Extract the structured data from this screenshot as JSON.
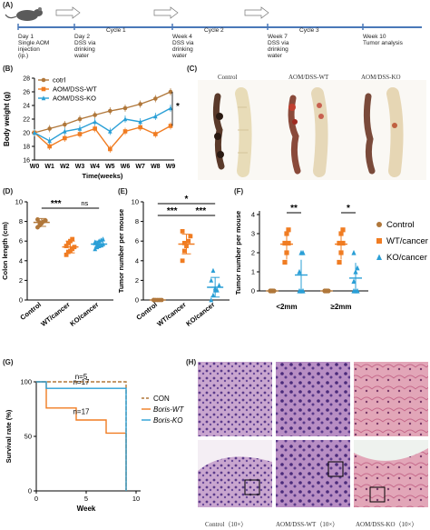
{
  "panels": {
    "A": "(A)",
    "B": "(B)",
    "C": "(C)",
    "D": "(D)",
    "E": "(E)",
    "F": "(F)",
    "G": "(G)",
    "H": "(H)"
  },
  "timeline": {
    "events": [
      {
        "line1": "Day 1",
        "line2": "Single AOM",
        "line3": "injection",
        "line4": "(ip.)"
      },
      {
        "line1": "Day 2",
        "line2": "DSS via",
        "line3": "drinking",
        "line4": "water"
      },
      {
        "line1": "Week 4",
        "line2": "DSS via",
        "line3": "drinking",
        "line4": "water"
      },
      {
        "line1": "Week 7",
        "line2": "DSS via",
        "line3": "drinking",
        "line4": "water"
      },
      {
        "line1": "Week 10",
        "line2": "Tumor analysis",
        "line3": "",
        "line4": ""
      }
    ],
    "cycles": [
      "Cycle 1",
      "Cycle 2",
      "Cycle 3"
    ]
  },
  "photos_c": {
    "labels": [
      "Control",
      "AOM/DSS-WT",
      "AOM/DSS-KO"
    ]
  },
  "photos_h": {
    "labels": [
      "Control（10×）",
      "AOM/DSS-WT（10×）",
      "AOM/DSS-KO（10×）"
    ]
  },
  "chart_data": [
    {
      "id": "B",
      "type": "line",
      "ylabel": "Body weight (g)",
      "xlabel": "Time(weeks)",
      "categories": [
        "W0",
        "W1",
        "W2",
        "W3",
        "W4",
        "W5",
        "W6",
        "W7",
        "W8",
        "W9"
      ],
      "ylim": [
        16,
        28
      ],
      "yticks": [
        16,
        18,
        20,
        22,
        24,
        26,
        28
      ],
      "series": [
        {
          "name": "cotrl",
          "color": "#b0773a",
          "values": [
            20,
            20.6,
            21.2,
            22.0,
            22.6,
            23.2,
            23.6,
            24.2,
            25.0,
            26.0
          ]
        },
        {
          "name": "AOM/DSS-WT",
          "color": "#f07c22",
          "values": [
            20,
            18.0,
            19.2,
            19.8,
            20.6,
            17.6,
            20.2,
            20.8,
            19.8,
            21.0
          ]
        },
        {
          "name": "AOM/DSS-KO",
          "color": "#2a9fd6",
          "values": [
            20,
            18.8,
            20.2,
            20.6,
            21.6,
            20.2,
            22.0,
            21.6,
            22.4,
            23.6
          ]
        }
      ],
      "annotation": "*"
    },
    {
      "id": "D",
      "type": "scatter",
      "ylabel": "Colon length (cm)",
      "categories": [
        "Control",
        "WT/cancer",
        "KO/cancer"
      ],
      "ylim": [
        0,
        10
      ],
      "yticks": [
        0,
        2,
        4,
        6,
        8,
        10
      ],
      "colors": [
        "#b0773a",
        "#f07c22",
        "#2a9fd6"
      ],
      "series": [
        {
          "values": [
            7.4,
            7.6,
            7.8,
            8.0,
            8.1,
            8.2,
            7.9
          ],
          "mean": 7.9,
          "sd": 0.4
        },
        {
          "values": [
            4.6,
            4.9,
            5.0,
            5.2,
            5.4,
            5.5,
            5.8,
            6.0,
            6.2
          ],
          "mean": 5.4,
          "sd": 0.6
        },
        {
          "values": [
            5.2,
            5.4,
            5.5,
            5.6,
            5.7,
            5.8,
            5.8,
            6.0,
            6.1,
            6.2,
            5.9,
            5.6
          ],
          "mean": 5.7,
          "sd": 0.3
        }
      ],
      "significance": [
        "***",
        "ns"
      ]
    },
    {
      "id": "E",
      "type": "scatter",
      "ylabel": "Tumor number per mouse",
      "categories": [
        "Control",
        "WT/cancer",
        "KO/cancer"
      ],
      "ylim": [
        0,
        10
      ],
      "yticks": [
        0,
        2,
        4,
        6,
        8,
        10
      ],
      "colors": [
        "#b0773a",
        "#f07c22",
        "#2a9fd6"
      ],
      "series": [
        {
          "values": [
            0,
            0,
            0,
            0,
            0,
            0
          ],
          "mean": 0,
          "sd": 0
        },
        {
          "values": [
            4,
            5,
            5.5,
            6,
            6.5,
            7,
            5.8
          ],
          "mean": 5.7,
          "sd": 1.0
        },
        {
          "values": [
            0,
            0.5,
            1,
            1,
            1.5,
            2,
            3,
            1.2
          ],
          "mean": 1.3,
          "sd": 1.0
        }
      ],
      "significance": [
        "*",
        "***",
        "***"
      ]
    },
    {
      "id": "F",
      "type": "scatter",
      "ylabel": "Tumor number per mouse",
      "categories": [
        "<2mm",
        "≥2mm"
      ],
      "ylim": [
        0,
        4
      ],
      "yticks": [
        0,
        1,
        2,
        3,
        4
      ],
      "series": [
        {
          "name": "Control",
          "color": "#b0773a",
          "values": [
            [
              0,
              0,
              0,
              0,
              0
            ],
            [
              0,
              0,
              0,
              0,
              0
            ]
          ]
        },
        {
          "name": "WT/cancer",
          "color": "#f07c22",
          "values": [
            [
              1.5,
              2,
              2.5,
              2.5,
              3,
              3.2
            ],
            [
              1.5,
              2,
              2.5,
              2.5,
              3,
              3.2
            ]
          ]
        },
        {
          "name": "KO/cancer",
          "color": "#2a9fd6",
          "values": [
            [
              0,
              0,
              0,
              1,
              2,
              2
            ],
            [
              0,
              0,
              0,
              0.5,
              1,
              1.2,
              2
            ]
          ]
        }
      ],
      "significance": [
        "**",
        "*"
      ]
    },
    {
      "id": "G",
      "type": "line",
      "ylabel": "Survival rate (%)",
      "xlabel": "Week",
      "xlim": [
        0,
        10
      ],
      "ylim": [
        0,
        100
      ],
      "xticks": [
        0,
        5,
        10
      ],
      "yticks": [
        0,
        50,
        100
      ],
      "series": [
        {
          "name": "CON",
          "n": "n=5",
          "color": "#b0773a",
          "dashed": true
        },
        {
          "name": "Boris-WT",
          "n": "n=17",
          "color": "#f07c22"
        },
        {
          "name": "Boris-KO",
          "n": "n=17",
          "color": "#2a9fd6"
        }
      ]
    }
  ]
}
